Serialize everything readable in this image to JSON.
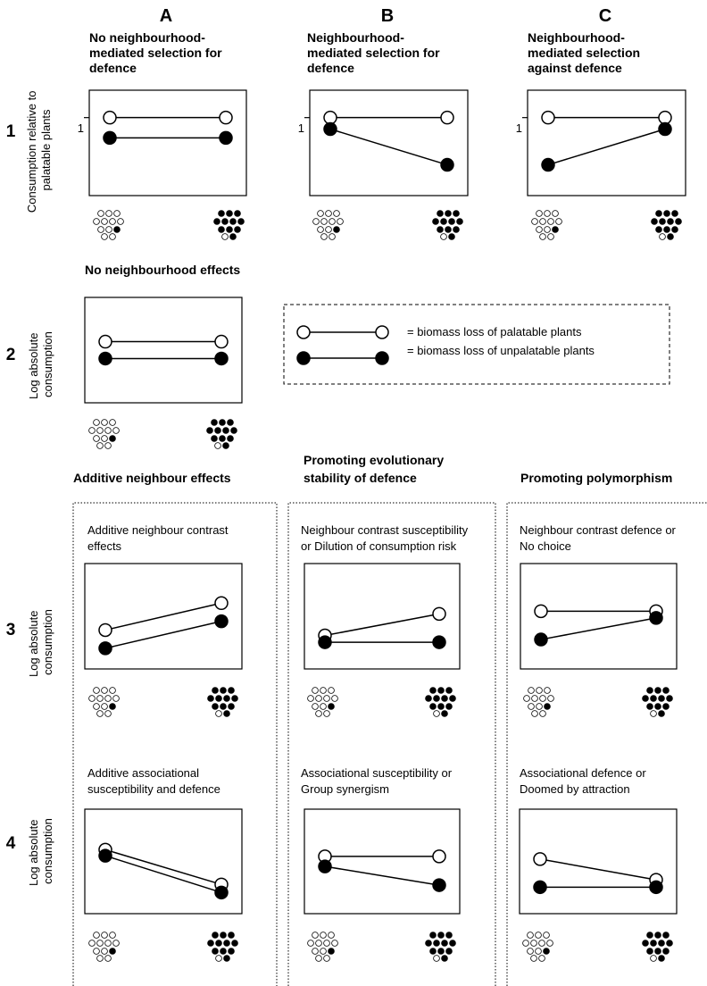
{
  "columns": {
    "A": {
      "letter": "A",
      "title_lines": [
        "No neighbourhood-",
        "mediated selection for",
        "defence"
      ]
    },
    "B": {
      "letter": "B",
      "title_lines": [
        "Neighbourhood-",
        "mediated selection for",
        "defence"
      ]
    },
    "C": {
      "letter": "C",
      "title_lines": [
        "Neighbourhood-",
        "mediated selection",
        "against defence"
      ]
    }
  },
  "rows": {
    "r1": {
      "number": "1",
      "ylabel_lines": [
        "Consumption relative to",
        "palatable plants"
      ],
      "tick_label": "1"
    },
    "r2": {
      "number": "2",
      "ylabel_lines": [
        "Log absolute",
        "consumption"
      ]
    },
    "r3": {
      "number": "3",
      "ylabel_lines": [
        "Log absolute",
        "consumption"
      ]
    },
    "r4": {
      "number": "4",
      "ylabel_lines": [
        "Log absolute",
        "consumption"
      ]
    }
  },
  "row2_title": "No neighbourhood effects",
  "legend": {
    "palatable": "= biomass loss of palatable plants",
    "unpalatable": "= biomass loss of unpalatable plants"
  },
  "groups": {
    "A": {
      "title_lines": [
        "Additive neighbour effects"
      ]
    },
    "B": {
      "title_lines": [
        "Promoting evolutionary",
        "stability of defence"
      ]
    },
    "C": {
      "title_lines": [
        "Promoting polymorphism"
      ]
    }
  },
  "subtitles": {
    "3A": [
      "Additive neighbour contrast",
      "effects"
    ],
    "3B": [
      "Neighbour contrast susceptibility",
      "or Dilution of consumption risk"
    ],
    "3C": [
      "Neighbour contrast defence or",
      "No choice"
    ],
    "4A": [
      "Additive associational",
      "susceptibility and defence"
    ],
    "4B": [
      "Associational susceptibility or",
      "Group synergism"
    ],
    "4C": [
      "Associational defence or",
      "Doomed by attraction"
    ]
  },
  "panels": [
    {
      "id": "1A",
      "palatable": [
        1.0,
        1.0
      ],
      "unpalatable": [
        0.7,
        0.7
      ]
    },
    {
      "id": "1B",
      "palatable": [
        1.0,
        1.0
      ],
      "unpalatable": [
        0.83,
        0.3
      ]
    },
    {
      "id": "1C",
      "palatable": [
        1.0,
        1.0
      ],
      "unpalatable": [
        0.3,
        0.83
      ]
    },
    {
      "id": "2A",
      "palatable": [
        0.75,
        0.75
      ],
      "unpalatable": [
        0.5,
        0.5
      ]
    },
    {
      "id": "3A",
      "palatable": [
        0.42,
        0.82
      ],
      "unpalatable": [
        0.15,
        0.55
      ]
    },
    {
      "id": "3B",
      "palatable": [
        0.34,
        0.66
      ],
      "unpalatable": [
        0.24,
        0.24
      ]
    },
    {
      "id": "3C",
      "palatable": [
        0.7,
        0.7
      ],
      "unpalatable": [
        0.28,
        0.6
      ]
    },
    {
      "id": "4A",
      "palatable": [
        0.8,
        0.28
      ],
      "unpalatable": [
        0.71,
        0.16
      ]
    },
    {
      "id": "4B",
      "palatable": [
        0.7,
        0.7
      ],
      "unpalatable": [
        0.55,
        0.27
      ]
    },
    {
      "id": "4C",
      "palatable": [
        0.66,
        0.35
      ],
      "unpalatable": [
        0.24,
        0.24
      ]
    }
  ],
  "colors": {
    "palatable": "#ffffff",
    "unpalatable": "#000000",
    "line": "#000000"
  }
}
